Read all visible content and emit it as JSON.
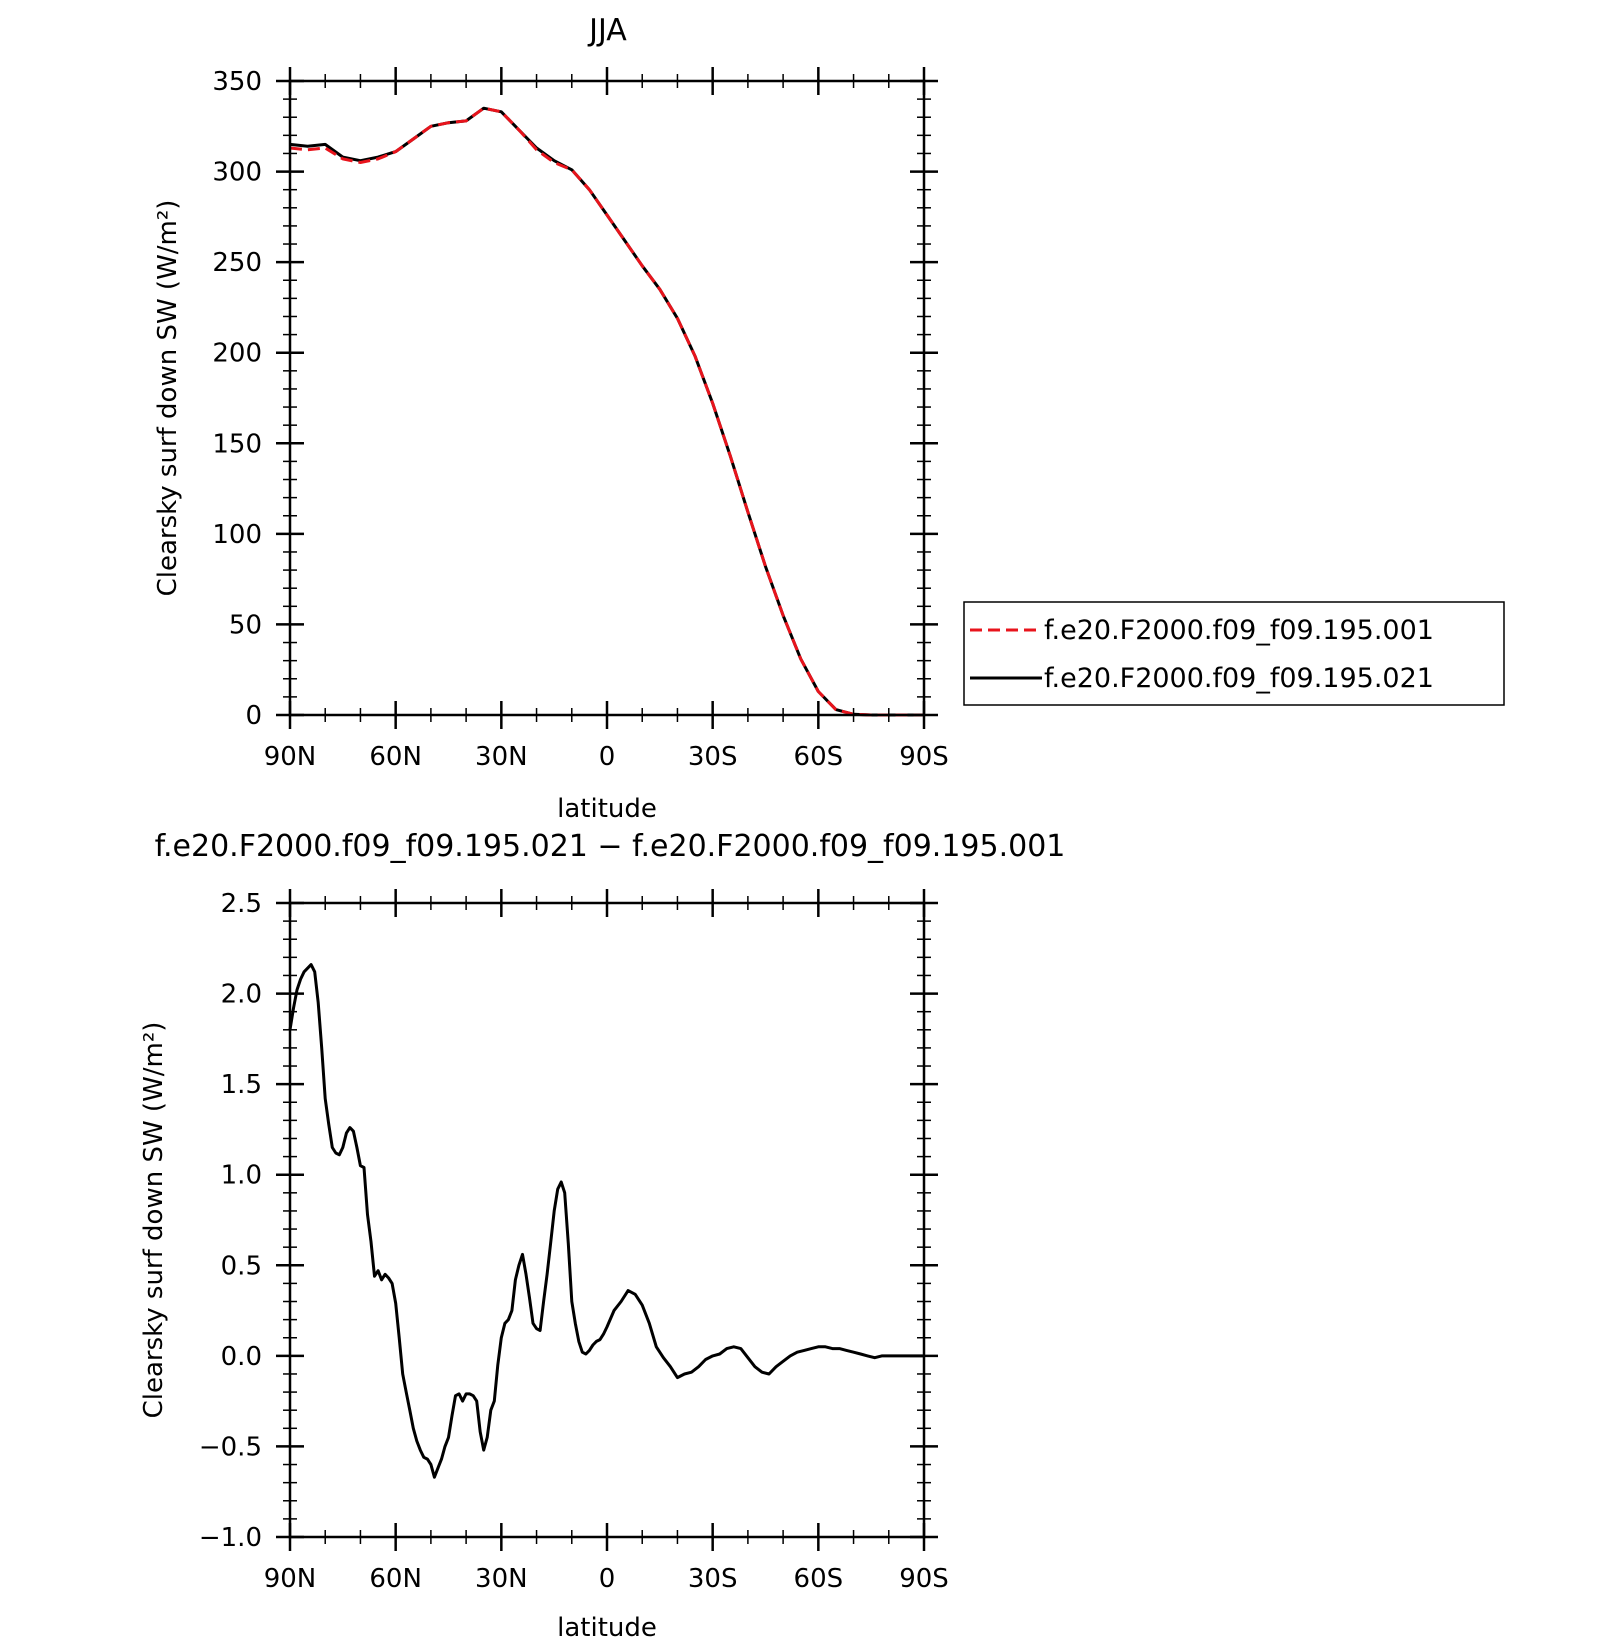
{
  "chart_data": [
    {
      "type": "line",
      "title": "JJA",
      "xlabel": "latitude",
      "ylabel": "Clearsky surf down SW (W/m²)",
      "xlim": [
        90,
        -90
      ],
      "ylim": [
        0,
        350
      ],
      "x_tick_values": [
        90,
        60,
        30,
        0,
        -30,
        -60,
        -90
      ],
      "x_tick_labels": [
        "90N",
        "60N",
        "30N",
        "0",
        "30S",
        "60S",
        "90S"
      ],
      "y_tick_values": [
        0,
        50,
        100,
        150,
        200,
        250,
        300,
        350
      ],
      "y_tick_labels": [
        "0",
        "50",
        "100",
        "150",
        "200",
        "250",
        "300",
        "350"
      ],
      "grid": false,
      "legend": "right",
      "x": [
        90,
        85,
        80,
        75,
        70,
        65,
        60,
        55,
        50,
        45,
        40,
        35,
        30,
        25,
        20,
        15,
        10,
        5,
        0,
        -5,
        -10,
        -15,
        -20,
        -25,
        -30,
        -35,
        -40,
        -45,
        -50,
        -55,
        -60,
        -65,
        -70,
        -75,
        -80,
        -85,
        -90
      ],
      "series": [
        {
          "name": "f.e20.F2000.f09_f09.195.001",
          "color": "#e8141c",
          "dash": "dashed",
          "values": [
            313,
            312,
            313,
            307,
            305,
            307,
            311,
            318,
            325,
            327,
            328,
            335,
            333,
            323,
            312,
            305,
            301,
            290,
            276,
            262,
            248,
            235,
            219,
            198,
            172,
            143,
            112,
            82,
            55,
            31,
            13,
            3,
            0.4,
            0,
            0,
            0,
            0
          ]
        },
        {
          "name": "f.e20.F2000.f09_f09.195.021",
          "color": "#000000",
          "dash": "solid",
          "values": [
            315,
            314,
            315,
            308,
            306,
            308,
            311,
            318,
            325,
            327,
            328,
            335,
            333,
            323,
            313,
            306,
            301,
            290,
            276,
            262,
            248,
            235,
            219,
            198,
            172,
            143,
            112,
            82,
            55,
            31,
            13,
            3,
            0.4,
            0,
            0,
            0,
            0
          ]
        }
      ]
    },
    {
      "type": "line",
      "title": "f.e20.F2000.f09_f09.195.021 − f.e20.F2000.f09_f09.195.001",
      "xlabel": "latitude",
      "ylabel": "Clearsky surf down SW (W/m²)",
      "xlim": [
        90,
        -90
      ],
      "ylim": [
        -1.0,
        2.5
      ],
      "x_tick_values": [
        90,
        60,
        30,
        0,
        -30,
        -60,
        -90
      ],
      "x_tick_labels": [
        "90N",
        "60N",
        "30N",
        "0",
        "30S",
        "60S",
        "90S"
      ],
      "y_tick_values": [
        -1.0,
        -0.5,
        0.0,
        0.5,
        1.0,
        1.5,
        2.0,
        2.5
      ],
      "y_tick_labels": [
        "−1.0",
        "−0.5",
        "0.0",
        "0.5",
        "1.0",
        "1.5",
        "2.0",
        "2.5"
      ],
      "grid": false,
      "x": [
        90,
        89,
        88,
        87,
        86,
        85,
        84,
        83,
        82,
        81,
        80,
        79,
        78,
        77,
        76,
        75,
        74,
        73,
        72,
        71,
        70,
        69,
        68,
        67,
        66,
        65,
        64,
        63,
        62,
        61,
        60,
        59,
        58,
        57,
        56,
        55,
        54,
        53,
        52,
        51,
        50,
        49,
        48,
        47,
        46,
        45,
        44,
        43,
        42,
        41,
        40,
        39,
        38,
        37,
        36,
        35,
        34,
        33,
        32,
        31,
        30,
        29,
        28,
        27,
        26,
        25,
        24,
        23,
        22,
        21,
        20,
        19,
        18,
        17,
        16,
        15,
        14,
        13,
        12,
        11,
        10,
        9,
        8,
        7,
        6,
        5,
        4,
        3,
        2,
        1,
        0,
        -2,
        -4,
        -6,
        -8,
        -10,
        -12,
        -14,
        -16,
        -18,
        -20,
        -22,
        -24,
        -26,
        -28,
        -30,
        -32,
        -34,
        -36,
        -38,
        -40,
        -42,
        -44,
        -46,
        -48,
        -50,
        -52,
        -54,
        -56,
        -58,
        -60,
        -62,
        -64,
        -66,
        -68,
        -70,
        -72,
        -74,
        -76,
        -78,
        -80,
        -85,
        -90
      ],
      "series": [
        {
          "values": [
            1.8,
            1.92,
            2.02,
            2.08,
            2.12,
            2.14,
            2.16,
            2.12,
            1.95,
            1.7,
            1.42,
            1.28,
            1.15,
            1.12,
            1.11,
            1.15,
            1.23,
            1.26,
            1.24,
            1.15,
            1.05,
            1.04,
            0.78,
            0.63,
            0.44,
            0.47,
            0.42,
            0.45,
            0.43,
            0.4,
            0.29,
            0.1,
            -0.1,
            -0.2,
            -0.3,
            -0.4,
            -0.47,
            -0.52,
            -0.56,
            -0.57,
            -0.6,
            -0.67,
            -0.62,
            -0.57,
            -0.5,
            -0.45,
            -0.33,
            -0.22,
            -0.21,
            -0.25,
            -0.21,
            -0.21,
            -0.22,
            -0.25,
            -0.42,
            -0.52,
            -0.45,
            -0.3,
            -0.25,
            -0.05,
            0.1,
            0.18,
            0.2,
            0.25,
            0.42,
            0.5,
            0.56,
            0.45,
            0.32,
            0.18,
            0.15,
            0.14,
            0.3,
            0.45,
            0.62,
            0.8,
            0.92,
            0.96,
            0.9,
            0.62,
            0.3,
            0.18,
            0.08,
            0.02,
            0.01,
            0.03,
            0.06,
            0.08,
            0.09,
            0.12,
            0.16,
            0.25,
            0.3,
            0.36,
            0.34,
            0.28,
            0.18,
            0.05,
            -0.01,
            -0.06,
            -0.12,
            -0.1,
            -0.09,
            -0.06,
            -0.02,
            0.0,
            0.01,
            0.04,
            0.05,
            0.04,
            -0.01,
            -0.06,
            -0.09,
            -0.1,
            -0.06,
            -0.03,
            0.0,
            0.02,
            0.03,
            0.04,
            0.05,
            0.05,
            0.04,
            0.04,
            0.03,
            0.02,
            0.01,
            0.0,
            -0.01,
            0.0,
            0.0,
            0.0,
            0.0
          ]
        }
      ]
    }
  ]
}
